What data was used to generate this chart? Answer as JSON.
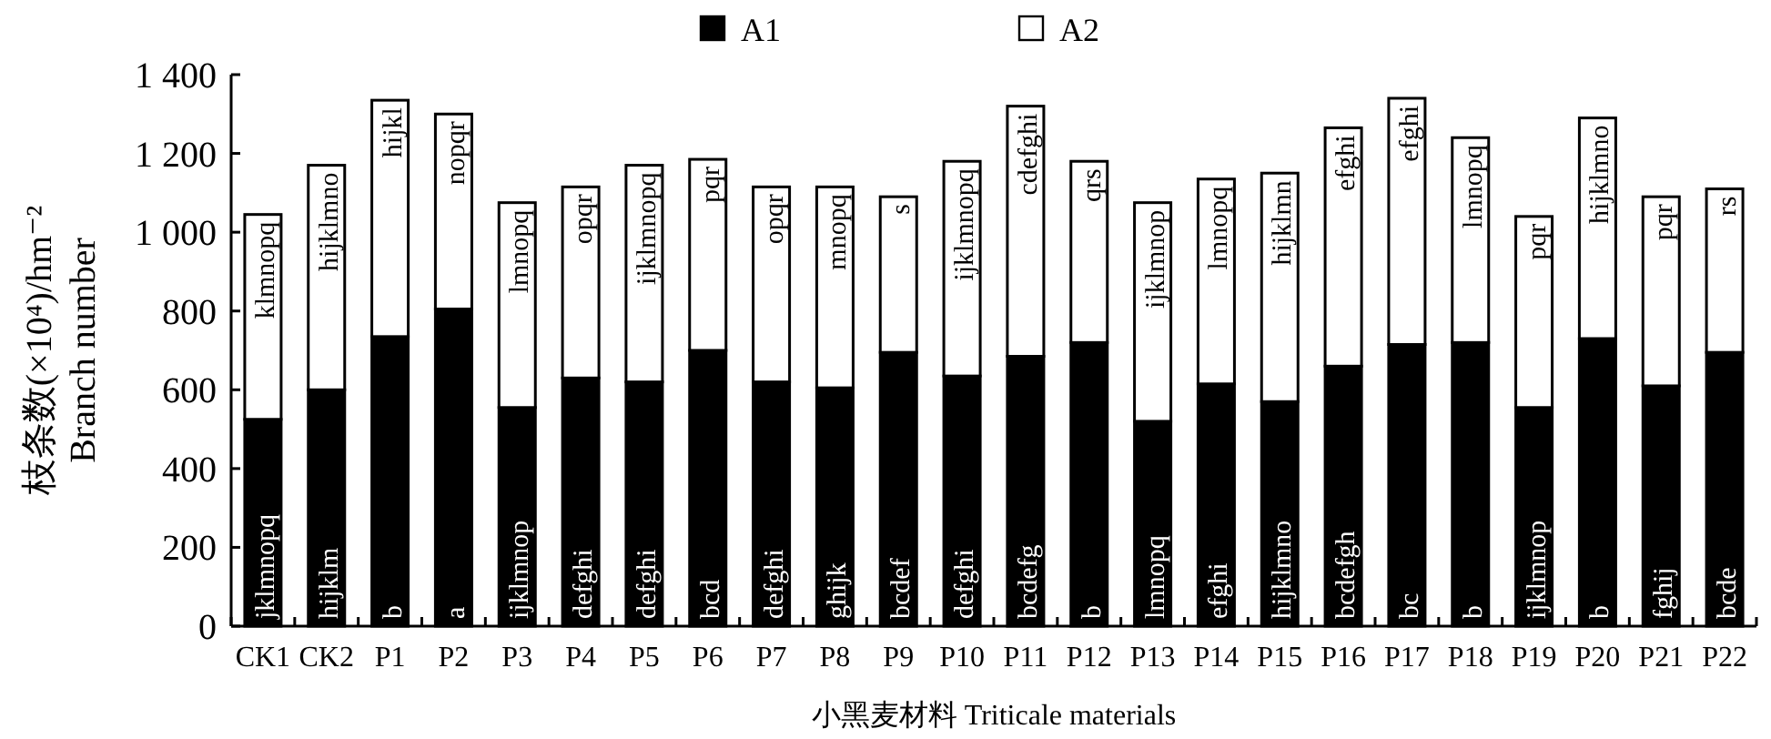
{
  "chart_data": {
    "type": "bar",
    "stacked": true,
    "xlabel": "小黑麦材料 Triticale materials",
    "ylabel": "枝条数(×10⁴)/hm⁻²\nBranch number",
    "categories": [
      "CK1",
      "CK2",
      "P1",
      "P2",
      "P3",
      "P4",
      "P5",
      "P6",
      "P7",
      "P8",
      "P9",
      "P10",
      "P11",
      "P12",
      "P13",
      "P14",
      "P15",
      "P16",
      "P17",
      "P18",
      "P19",
      "P20",
      "P21",
      "P22"
    ],
    "series": [
      {
        "name": "A1",
        "color": "#000000",
        "values": [
          525,
          600,
          735,
          805,
          555,
          630,
          620,
          700,
          620,
          605,
          695,
          635,
          685,
          720,
          520,
          615,
          570,
          660,
          715,
          720,
          555,
          730,
          610,
          695
        ],
        "value_labels": [
          "jklmnopq",
          "hijklm",
          "b",
          "a",
          "ijklmnop",
          "defghi",
          "defghi",
          "bcd",
          "defghi",
          "ghijk",
          "bcdef",
          "defghi",
          "bcdefg",
          "b",
          "lmnopq",
          "efghi",
          "hijklmno",
          "bcdefgh",
          "bc",
          "b",
          "ijklmnop",
          "b",
          "fghij",
          "bcde"
        ]
      },
      {
        "name": "A2",
        "color": "#ffffff",
        "values": [
          520,
          570,
          600,
          495,
          520,
          485,
          550,
          485,
          495,
          510,
          395,
          545,
          635,
          460,
          555,
          520,
          580,
          605,
          625,
          520,
          485,
          560,
          480,
          415
        ],
        "value_labels": [
          "klmnopq",
          "hijklmno",
          "hijkl",
          "nopqr",
          "lmnopq",
          "opqr",
          "ijklmnopq",
          "pqr",
          "opqr",
          "mnopq",
          "s",
          "ijklmnopq",
          "cdefghi",
          "qrs",
          "ijklmnop",
          "lmnopq",
          "hijklmn",
          "efghi",
          "efghi",
          "lmnopq",
          "pqr",
          "hijklmno",
          "pqr",
          "rs"
        ]
      }
    ],
    "ylim": [
      0,
      1400
    ],
    "yticks": [
      0,
      200,
      400,
      600,
      800,
      {
        "value": 1000,
        "label": "1 000"
      },
      {
        "value": 1200,
        "label": "1 200"
      },
      {
        "value": 1400,
        "label": "1 400"
      }
    ],
    "grid": false,
    "legend": "top"
  }
}
